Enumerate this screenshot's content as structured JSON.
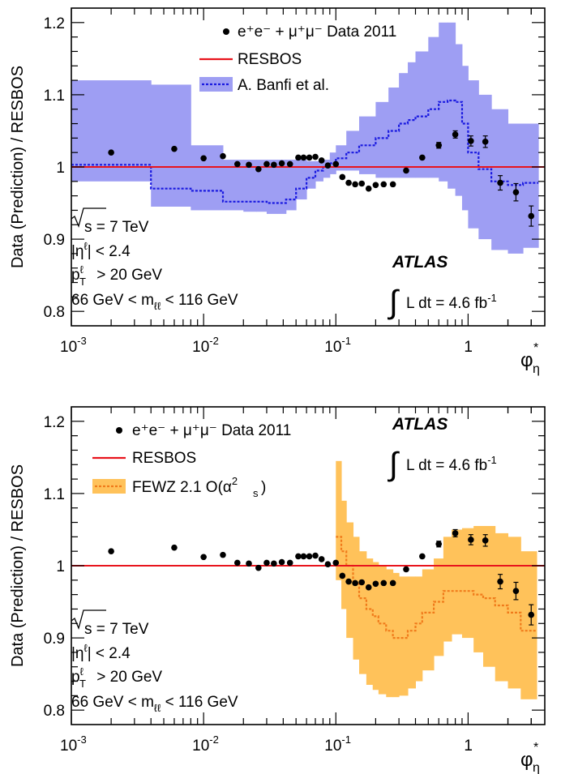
{
  "y_axis_label": "Data (Prediction) / RESBOS",
  "x_axis_label": "φ",
  "x_axis_label_sup": "*",
  "x_axis_label_sub": "η",
  "x_tick_labels": [
    {
      "base": "10",
      "exp": "-3"
    },
    {
      "base": "10",
      "exp": "-2"
    },
    {
      "base": "10",
      "exp": "-1"
    },
    {
      "base": "1",
      "exp": ""
    }
  ],
  "y_tick_labels": [
    "0.8",
    "0.9",
    "1",
    "1.1",
    "1.2"
  ],
  "atlas_label": "ATLAS",
  "luminosity": {
    "integral": "∫",
    "text": "L dt = 4.6 fb",
    "sup": "-1"
  },
  "selection": {
    "sqrt_s": "s = 7 TeV",
    "eta_pre": "|η",
    "eta_sup": "ℓ",
    "eta_post": "| < 2.4",
    "pt_pre": "p",
    "pt_sup": "ℓ",
    "pt_sub": "T",
    "pt_post": " > 20 GeV",
    "mass_pre": "66 GeV < m",
    "mass_sub": "ℓℓ",
    "mass_post": " < 116 GeV"
  },
  "legend_data_label": "e⁺e⁻ + μ⁺μ⁻ Data 2011",
  "legend_resbos_label": "RESBOS",
  "legend_banfi_label": "A. Banfi et al.",
  "legend_fewz_label_pre": "FEWZ 2.1 O(α",
  "legend_fewz_label_sup": "2",
  "legend_fewz_label_sub": "s",
  "legend_fewz_label_post": ")",
  "colors": {
    "data": "#000000",
    "resbos": "#e8141d",
    "banfi_band": "#9e9ef3",
    "banfi_line": "#1a1ae0",
    "fewz_band": "#ffc25a",
    "fewz_line": "#f07b1b"
  },
  "chart_data": [
    {
      "type": "scatter",
      "panel": "top",
      "x_scale": "log",
      "xlim": [
        0.001,
        3.8
      ],
      "ylim": [
        0.78,
        1.22
      ],
      "grid": false,
      "legend_placement": "top-center",
      "series": [
        {
          "name": "e⁺e⁻ + μ⁺μ⁻ Data 2011",
          "kind": "points",
          "x": [
            0.002,
            0.006,
            0.01,
            0.014,
            0.018,
            0.022,
            0.026,
            0.03,
            0.034,
            0.039,
            0.045,
            0.052,
            0.057,
            0.063,
            0.07,
            0.078,
            0.087,
            0.1,
            0.112,
            0.125,
            0.14,
            0.157,
            0.177,
            0.2,
            0.23,
            0.27,
            0.34,
            0.45,
            0.6,
            0.8,
            1.05,
            1.35,
            1.75,
            2.3,
            3.0
          ],
          "y": [
            1.02,
            1.025,
            1.012,
            1.015,
            1.004,
            1.003,
            0.997,
            1.004,
            1.003,
            1.005,
            1.004,
            1.013,
            1.013,
            1.013,
            1.014,
            1.009,
            1.002,
            1.004,
            0.986,
            0.978,
            0.976,
            0.977,
            0.97,
            0.975,
            0.976,
            0.976,
            0.995,
            1.013,
            1.03,
            1.045,
            1.036,
            1.035,
            0.978,
            0.965,
            0.932
          ],
          "err": [
            0.002,
            0.002,
            0.002,
            0.002,
            0.002,
            0.002,
            0.002,
            0.002,
            0.002,
            0.002,
            0.002,
            0.002,
            0.002,
            0.002,
            0.002,
            0.002,
            0.002,
            0.002,
            0.002,
            0.002,
            0.002,
            0.002,
            0.002,
            0.002,
            0.002,
            0.002,
            0.002,
            0.002,
            0.004,
            0.005,
            0.007,
            0.008,
            0.01,
            0.012,
            0.014
          ]
        },
        {
          "name": "RESBOS",
          "kind": "line",
          "x": [
            0.001,
            3.8
          ],
          "y": [
            1.0,
            1.0
          ]
        },
        {
          "name": "A. Banfi et al.",
          "kind": "band_and_line",
          "edges": [
            0.001,
            0.004,
            0.008,
            0.014,
            0.02,
            0.025,
            0.03,
            0.036,
            0.042,
            0.05,
            0.06,
            0.07,
            0.08,
            0.09,
            0.1,
            0.12,
            0.15,
            0.2,
            0.25,
            0.3,
            0.35,
            0.4,
            0.5,
            0.6,
            0.7,
            0.8,
            0.9,
            1.0,
            1.2,
            1.5,
            2.0,
            2.6,
            3.4
          ],
          "central": [
            1.003,
            0.97,
            0.967,
            0.952,
            0.952,
            0.952,
            0.95,
            0.95,
            0.955,
            0.97,
            0.985,
            0.995,
            1.0,
            1.005,
            1.012,
            1.02,
            1.03,
            1.04,
            1.05,
            1.06,
            1.065,
            1.07,
            1.08,
            1.09,
            1.092,
            1.09,
            1.06,
            1.02,
            0.997,
            0.98,
            0.975,
            0.978
          ],
          "lower": [
            0.98,
            0.945,
            0.94,
            0.94,
            0.938,
            0.938,
            0.935,
            0.935,
            0.94,
            0.955,
            0.97,
            0.98,
            0.985,
            0.99,
            0.995,
            0.995,
            0.99,
            0.985,
            0.985,
            0.985,
            0.985,
            0.985,
            0.985,
            0.98,
            0.97,
            0.96,
            0.94,
            0.915,
            0.9,
            0.885,
            0.88,
            0.888
          ],
          "upper": [
            1.12,
            1.114,
            1.03,
            1.01,
            1.01,
            1.01,
            1.01,
            1.01,
            1.01,
            1.01,
            1.008,
            1.008,
            1.01,
            1.02,
            1.03,
            1.05,
            1.07,
            1.09,
            1.11,
            1.13,
            1.145,
            1.16,
            1.18,
            1.2,
            1.2,
            1.17,
            1.14,
            1.12,
            1.1,
            1.08,
            1.06,
            1.06
          ]
        }
      ]
    },
    {
      "type": "scatter",
      "panel": "bottom",
      "x_scale": "log",
      "xlim": [
        0.001,
        3.8
      ],
      "ylim": [
        0.78,
        1.22
      ],
      "grid": false,
      "legend_placement": "top-left",
      "series": [
        {
          "name": "e⁺e⁻ + μ⁺μ⁻ Data 2011",
          "kind": "points",
          "x": [
            0.002,
            0.006,
            0.01,
            0.014,
            0.018,
            0.022,
            0.026,
            0.03,
            0.034,
            0.039,
            0.045,
            0.052,
            0.057,
            0.063,
            0.07,
            0.078,
            0.087,
            0.1,
            0.112,
            0.125,
            0.14,
            0.157,
            0.177,
            0.2,
            0.23,
            0.27,
            0.34,
            0.45,
            0.6,
            0.8,
            1.05,
            1.35,
            1.75,
            2.3,
            3.0
          ],
          "y": [
            1.02,
            1.025,
            1.012,
            1.015,
            1.004,
            1.003,
            0.997,
            1.004,
            1.003,
            1.005,
            1.004,
            1.013,
            1.013,
            1.013,
            1.014,
            1.009,
            1.002,
            1.004,
            0.986,
            0.978,
            0.976,
            0.977,
            0.97,
            0.975,
            0.976,
            0.976,
            0.995,
            1.013,
            1.03,
            1.045,
            1.036,
            1.035,
            0.978,
            0.965,
            0.932
          ],
          "err": [
            0.002,
            0.002,
            0.002,
            0.002,
            0.002,
            0.002,
            0.002,
            0.002,
            0.002,
            0.002,
            0.002,
            0.002,
            0.002,
            0.002,
            0.002,
            0.002,
            0.002,
            0.002,
            0.002,
            0.002,
            0.002,
            0.002,
            0.002,
            0.002,
            0.002,
            0.002,
            0.002,
            0.002,
            0.004,
            0.005,
            0.007,
            0.008,
            0.01,
            0.012,
            0.014
          ]
        },
        {
          "name": "RESBOS",
          "kind": "line",
          "x": [
            0.001,
            3.8
          ],
          "y": [
            1.0,
            1.0
          ]
        },
        {
          "name": "FEWZ 2.1 O(αs²)",
          "kind": "band_and_line",
          "edges": [
            0.1,
            0.11,
            0.12,
            0.135,
            0.15,
            0.17,
            0.19,
            0.21,
            0.24,
            0.27,
            0.3,
            0.35,
            0.4,
            0.45,
            0.55,
            0.65,
            0.75,
            0.9,
            1.1,
            1.3,
            1.6,
            2.0,
            2.5,
            3.3
          ],
          "central": [
            1.04,
            1.02,
            1.0,
            0.975,
            0.955,
            0.94,
            0.93,
            0.92,
            0.91,
            0.9,
            0.9,
            0.91,
            0.92,
            0.935,
            0.95,
            0.965,
            0.965,
            0.965,
            0.96,
            0.955,
            0.945,
            0.935,
            0.91
          ],
          "lower": [
            0.98,
            0.94,
            0.9,
            0.87,
            0.85,
            0.835,
            0.828,
            0.822,
            0.818,
            0.818,
            0.82,
            0.83,
            0.84,
            0.855,
            0.875,
            0.895,
            0.905,
            0.9,
            0.88,
            0.86,
            0.84,
            0.83,
            0.815
          ],
          "upper": [
            1.145,
            1.09,
            1.06,
            1.04,
            1.02,
            1.01,
            1.005,
            1.0,
            0.995,
            0.99,
            0.985,
            0.985,
            0.985,
            0.995,
            1.01,
            1.04,
            1.05,
            1.052,
            1.055,
            1.055,
            1.045,
            1.04,
            1.02
          ]
        }
      ]
    }
  ]
}
